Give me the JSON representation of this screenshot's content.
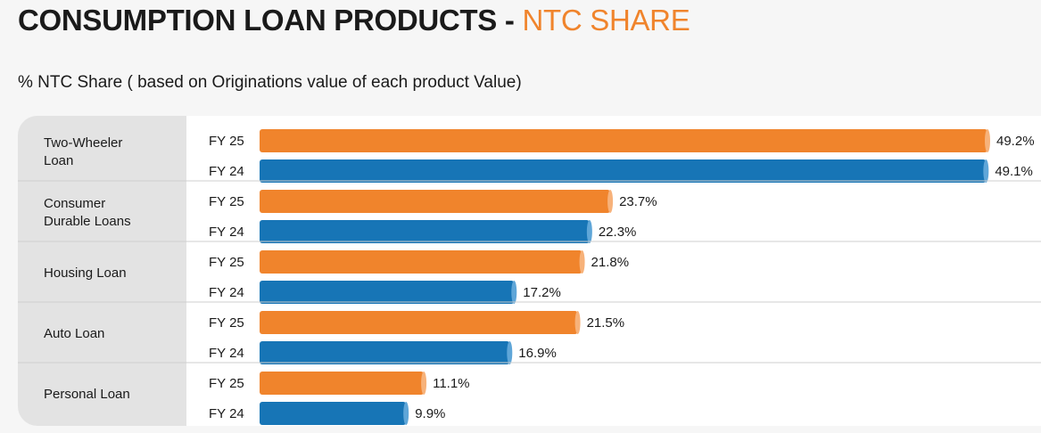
{
  "header": {
    "title_main": "CONSUMPTION LOAN PRODUCTS - ",
    "title_accent": "NTC SHARE",
    "subtitle": "% NTC Share ( based on Originations value of each product Value)"
  },
  "colors": {
    "accent": "#f0842c",
    "fy25": "#f0842c",
    "fy24": "#1775b6",
    "title": "#1a1a1a"
  },
  "chart_data": {
    "type": "bar",
    "orientation": "horizontal",
    "unit": "%",
    "categories": [
      "Two-Wheeler Loan",
      "Consumer Durable Loans",
      "Housing Loan",
      "Auto Loan",
      "Personal Loan"
    ],
    "category_lines": [
      [
        "Two-Wheeler",
        "Loan"
      ],
      [
        "Consumer",
        "Durable Loans"
      ],
      [
        "Housing Loan"
      ],
      [
        "Auto Loan"
      ],
      [
        "Personal Loan"
      ]
    ],
    "series": [
      {
        "name": "FY 25",
        "values": [
          49.2,
          23.7,
          21.8,
          21.5,
          11.1
        ]
      },
      {
        "name": "FY 24",
        "values": [
          49.1,
          22.3,
          17.2,
          16.9,
          9.9
        ]
      }
    ],
    "value_labels": {
      "FY 25": [
        "49.2%",
        "23.7%",
        "21.8%",
        "21.5%",
        "11.1%"
      ],
      "FY 24": [
        "49.1%",
        "22.3%",
        "17.2%",
        "16.9%",
        "9.9%"
      ]
    },
    "xlim": [
      0,
      50
    ],
    "legend": "none",
    "grid": false
  }
}
